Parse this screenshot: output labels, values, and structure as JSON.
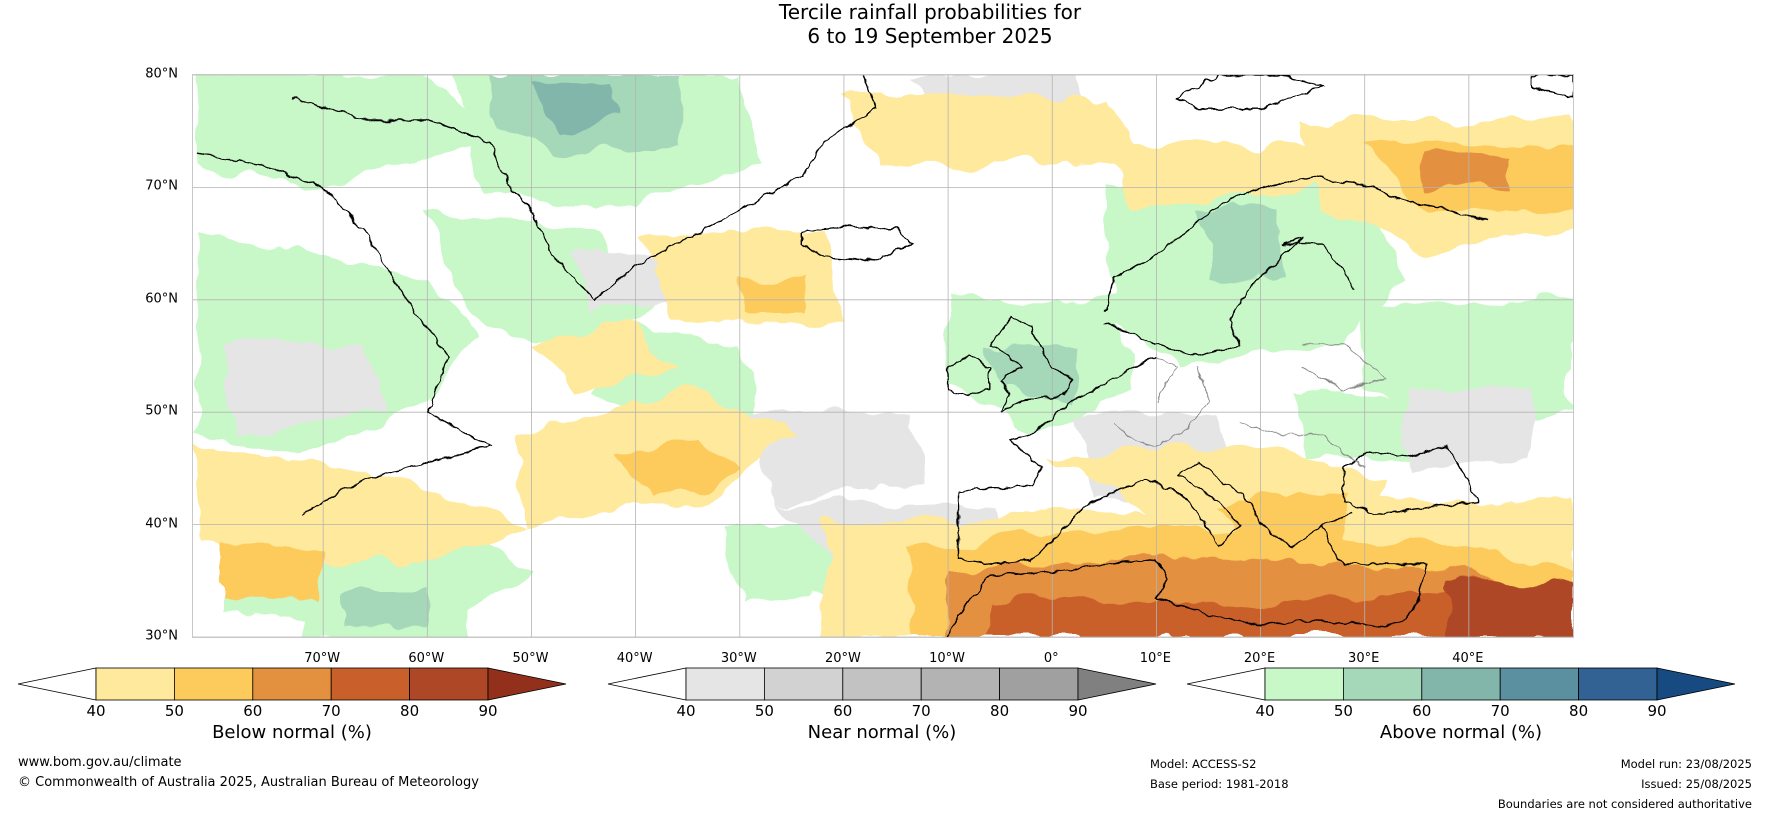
{
  "title_line1": "Tercile rainfall probabilities for",
  "title_line2": "6 to 19 September 2025",
  "lat_labels": [
    {
      "text": "80°N",
      "lat": 80
    },
    {
      "text": "70°N",
      "lat": 70
    },
    {
      "text": "60°N",
      "lat": 60
    },
    {
      "text": "50°N",
      "lat": 50
    },
    {
      "text": "40°N",
      "lat": 40
    },
    {
      "text": "30°N",
      "lat": 30
    }
  ],
  "lon_labels": [
    {
      "text": "70°W",
      "lon": -70
    },
    {
      "text": "60°W",
      "lon": -60
    },
    {
      "text": "50°W",
      "lon": -50
    },
    {
      "text": "40°W",
      "lon": -40
    },
    {
      "text": "30°W",
      "lon": -30
    },
    {
      "text": "20°W",
      "lon": -20
    },
    {
      "text": "10°W",
      "lon": -10
    },
    {
      "text": "0°",
      "lon": 0
    },
    {
      "text": "10°E",
      "lon": 10
    },
    {
      "text": "20°E",
      "lon": 20
    },
    {
      "text": "30°E",
      "lon": 30
    },
    {
      "text": "40°E",
      "lon": 40
    }
  ],
  "colorbars": [
    {
      "id": "below",
      "title": "Below normal (%)",
      "ticks": [
        "40",
        "50",
        "60",
        "70",
        "80",
        "90"
      ],
      "low_color": "#ffffff",
      "colors": [
        "#fee99c",
        "#fdca5c",
        "#e3903f",
        "#c9602b",
        "#ad4726"
      ],
      "high_color": "#92301c"
    },
    {
      "id": "near",
      "title": "Near normal (%)",
      "ticks": [
        "40",
        "50",
        "60",
        "70",
        "80",
        "90"
      ],
      "low_color": "#ffffff",
      "colors": [
        "#e5e5e5",
        "#d2d2d2",
        "#c2c2c2",
        "#b3b3b3",
        "#a0a0a0"
      ],
      "high_color": "#808080"
    },
    {
      "id": "above",
      "title": "Above normal (%)",
      "ticks": [
        "40",
        "50",
        "60",
        "70",
        "80",
        "90"
      ],
      "low_color": "#ffffff",
      "colors": [
        "#c8f7c8",
        "#a4d8b8",
        "#82b6ab",
        "#5a90a0",
        "#326294"
      ],
      "high_color": "#164a80"
    }
  ],
  "footer": {
    "website": "www.bom.gov.au/climate",
    "copyright": "© Commonwealth of Australia 2025, Australian Bureau of Meteorology",
    "model": "Model: ACCESS-S2",
    "base_period": "Base period: 1981-2018",
    "model_run": "Model run: 23/08/2025",
    "issued": "Issued: 25/08/2025",
    "disclaimer": "Boundaries are not considered authoritative"
  },
  "map": {
    "lon_min": -82.5,
    "lon_max": 50,
    "lat_min": 30,
    "lat_max": 80,
    "colors": {
      "ocean": "#ffffff",
      "grid": "#b4b4b4",
      "coast": "#000000",
      "border": "#888888"
    }
  }
}
